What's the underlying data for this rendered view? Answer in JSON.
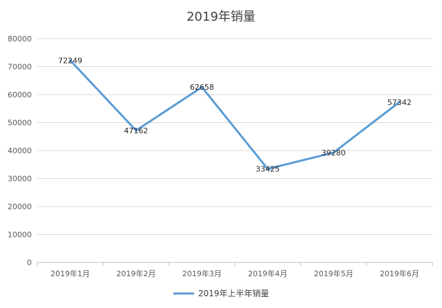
{
  "chart_data": {
    "type": "line",
    "title": "2019年销量",
    "categories": [
      "2019年1月",
      "2019年2月",
      "2019年3月",
      "2019年4月",
      "2019年5月",
      "2019年6月"
    ],
    "series": [
      {
        "name": "2019年上半年销量",
        "values": [
          72249,
          47162,
          62658,
          33425,
          39280,
          57342
        ],
        "color": "#5b9bd5"
      }
    ],
    "ylim": [
      0,
      80000
    ],
    "yticks": [
      0,
      10000,
      20000,
      30000,
      40000,
      50000,
      60000,
      70000,
      80000
    ],
    "grid": true,
    "legend_position": "bottom",
    "data_labels": true
  },
  "colors": {
    "grid": "#d9d9d9",
    "axis": "#bfbfbf",
    "series": "#5b9bd5"
  }
}
